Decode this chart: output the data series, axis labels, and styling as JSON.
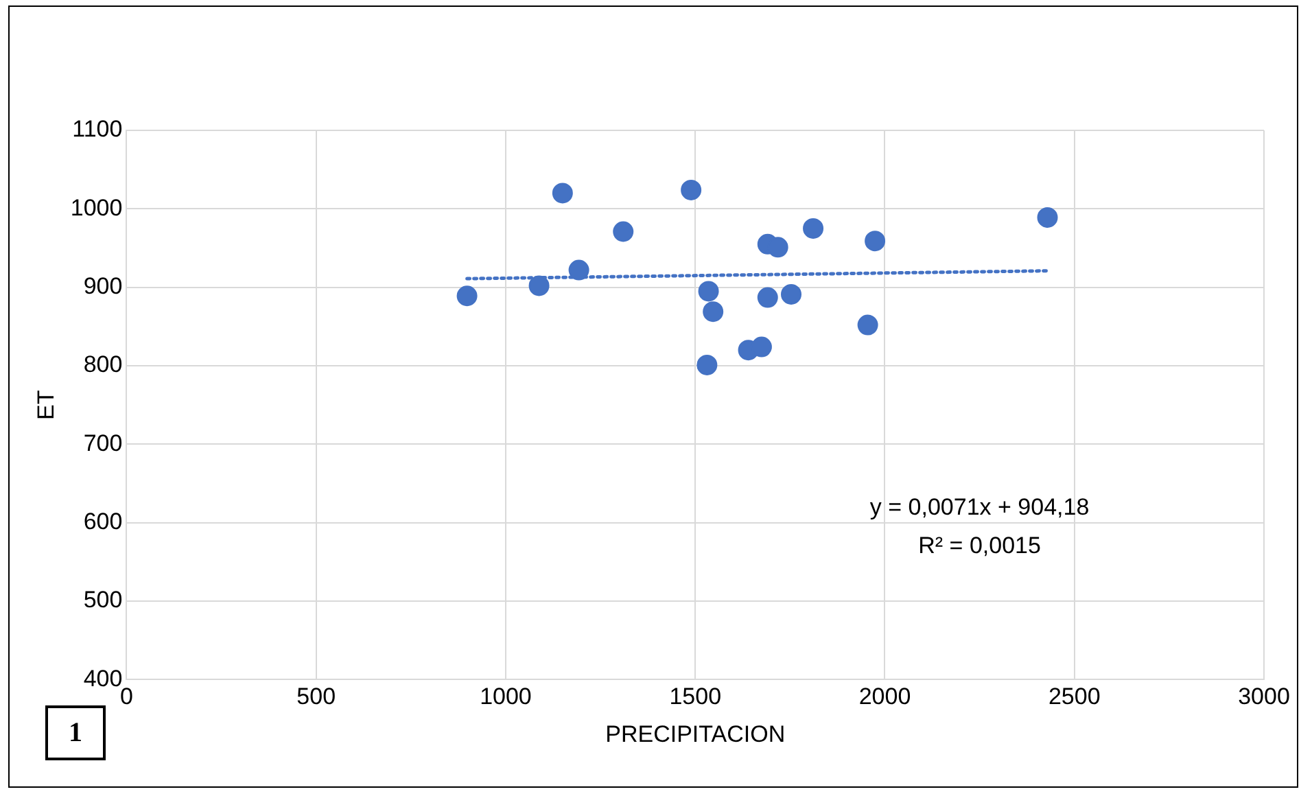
{
  "chart_data": {
    "type": "scatter",
    "xlabel": "PRECIPITACION",
    "ylabel": "ET",
    "xlim": [
      0,
      3000
    ],
    "xticks": [
      0,
      500,
      1000,
      1500,
      2000,
      2500,
      3000
    ],
    "ylim": [
      400,
      1100
    ],
    "yticks": [
      400,
      500,
      600,
      700,
      800,
      900,
      1000,
      1100
    ],
    "grid": true,
    "legend": false,
    "marker": "circle",
    "series": [
      {
        "color": "#4472c4",
        "x": [
          898,
          1088,
          1150,
          1193,
          1310,
          1489,
          1535,
          1547,
          1531,
          1640,
          1675,
          1691,
          1718,
          1691,
          1753,
          1811,
          1955,
          1974,
          2429
        ],
        "values": [
          889,
          902,
          1020,
          922,
          971,
          1024,
          895,
          869,
          801,
          820,
          824,
          955,
          951,
          887,
          891,
          975,
          852,
          959,
          989
        ]
      },
      {
        "type": "line",
        "color": "#4472c4",
        "line_style": "dotted",
        "marker": "none",
        "x": [
          898,
          2429
        ],
        "values": [
          911,
          921
        ]
      }
    ],
    "annotations": [
      "y = 0,0071x + 904,18",
      "R² = 0,0015",
      "1"
    ]
  }
}
